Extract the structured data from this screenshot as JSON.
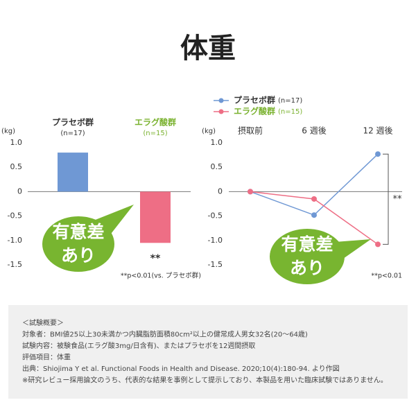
{
  "title": "体重",
  "chart_data": [
    {
      "type": "bar",
      "y_unit": "(kg)",
      "categories": [
        "プラセボ群",
        "エラグ酸群"
      ],
      "category_notes": [
        "(n=17)",
        "(n=15)"
      ],
      "category_colors": [
        "#333333",
        "#7ab22f"
      ],
      "values": [
        0.8,
        -1.05
      ],
      "colors": [
        "#6f98d4",
        "#ee6e85"
      ],
      "ylim": [
        -1.5,
        1.0
      ],
      "yticks": [
        {
          "value": 1,
          "label": "1.0"
        },
        0.5,
        0,
        -0.5,
        {
          "value": -1,
          "label": "-1.0"
        },
        -1.5
      ],
      "annotation": "**",
      "footnote": "**p<0.01(vs. プラセボ群)",
      "badge": [
        "有意差",
        "あり"
      ]
    },
    {
      "type": "line",
      "y_unit": "(kg)",
      "categories": [
        "摂取前",
        "6 週後",
        "12 週後"
      ],
      "series": [
        {
          "name": "プラセボ群",
          "n": "(n=17)",
          "label_color": "#333333",
          "color": "#6f98d4",
          "values": [
            0,
            -0.48,
            0.77
          ]
        },
        {
          "name": "エラグ酸群",
          "n": "(n=15)",
          "label_color": "#7ab22f",
          "color": "#ee6e85",
          "values": [
            0,
            -0.15,
            -1.08
          ]
        }
      ],
      "ylim": [
        -1.5,
        1.0
      ],
      "yticks": [
        {
          "value": 1,
          "label": "1.0"
        },
        0.5,
        0,
        -0.5,
        {
          "value": -1,
          "label": "-1.0"
        },
        -1.5
      ],
      "annotation": "**",
      "footnote": "**p<0.01",
      "badge": [
        "有意差",
        "あり"
      ]
    }
  ],
  "notes": [
    "＜試験概要＞",
    "対象者：BMI値25以上30未満かつ内臓脂肪面積80cm²以上の健常成人男女32名(20～64歳)",
    "試験内容：被験食品(エラグ酸3mg/日含有)、またはプラセボを12週間摂取",
    "評価項目：体重",
    "出典：Shiojima Y et al. Functional Foods in Health and Disease. 2020;10(4):180-94. より作図",
    "※研究レビュー採用論文のうち、代表的な結果を事例として提示しており、本製品を用いた臨床試験ではありません。"
  ]
}
